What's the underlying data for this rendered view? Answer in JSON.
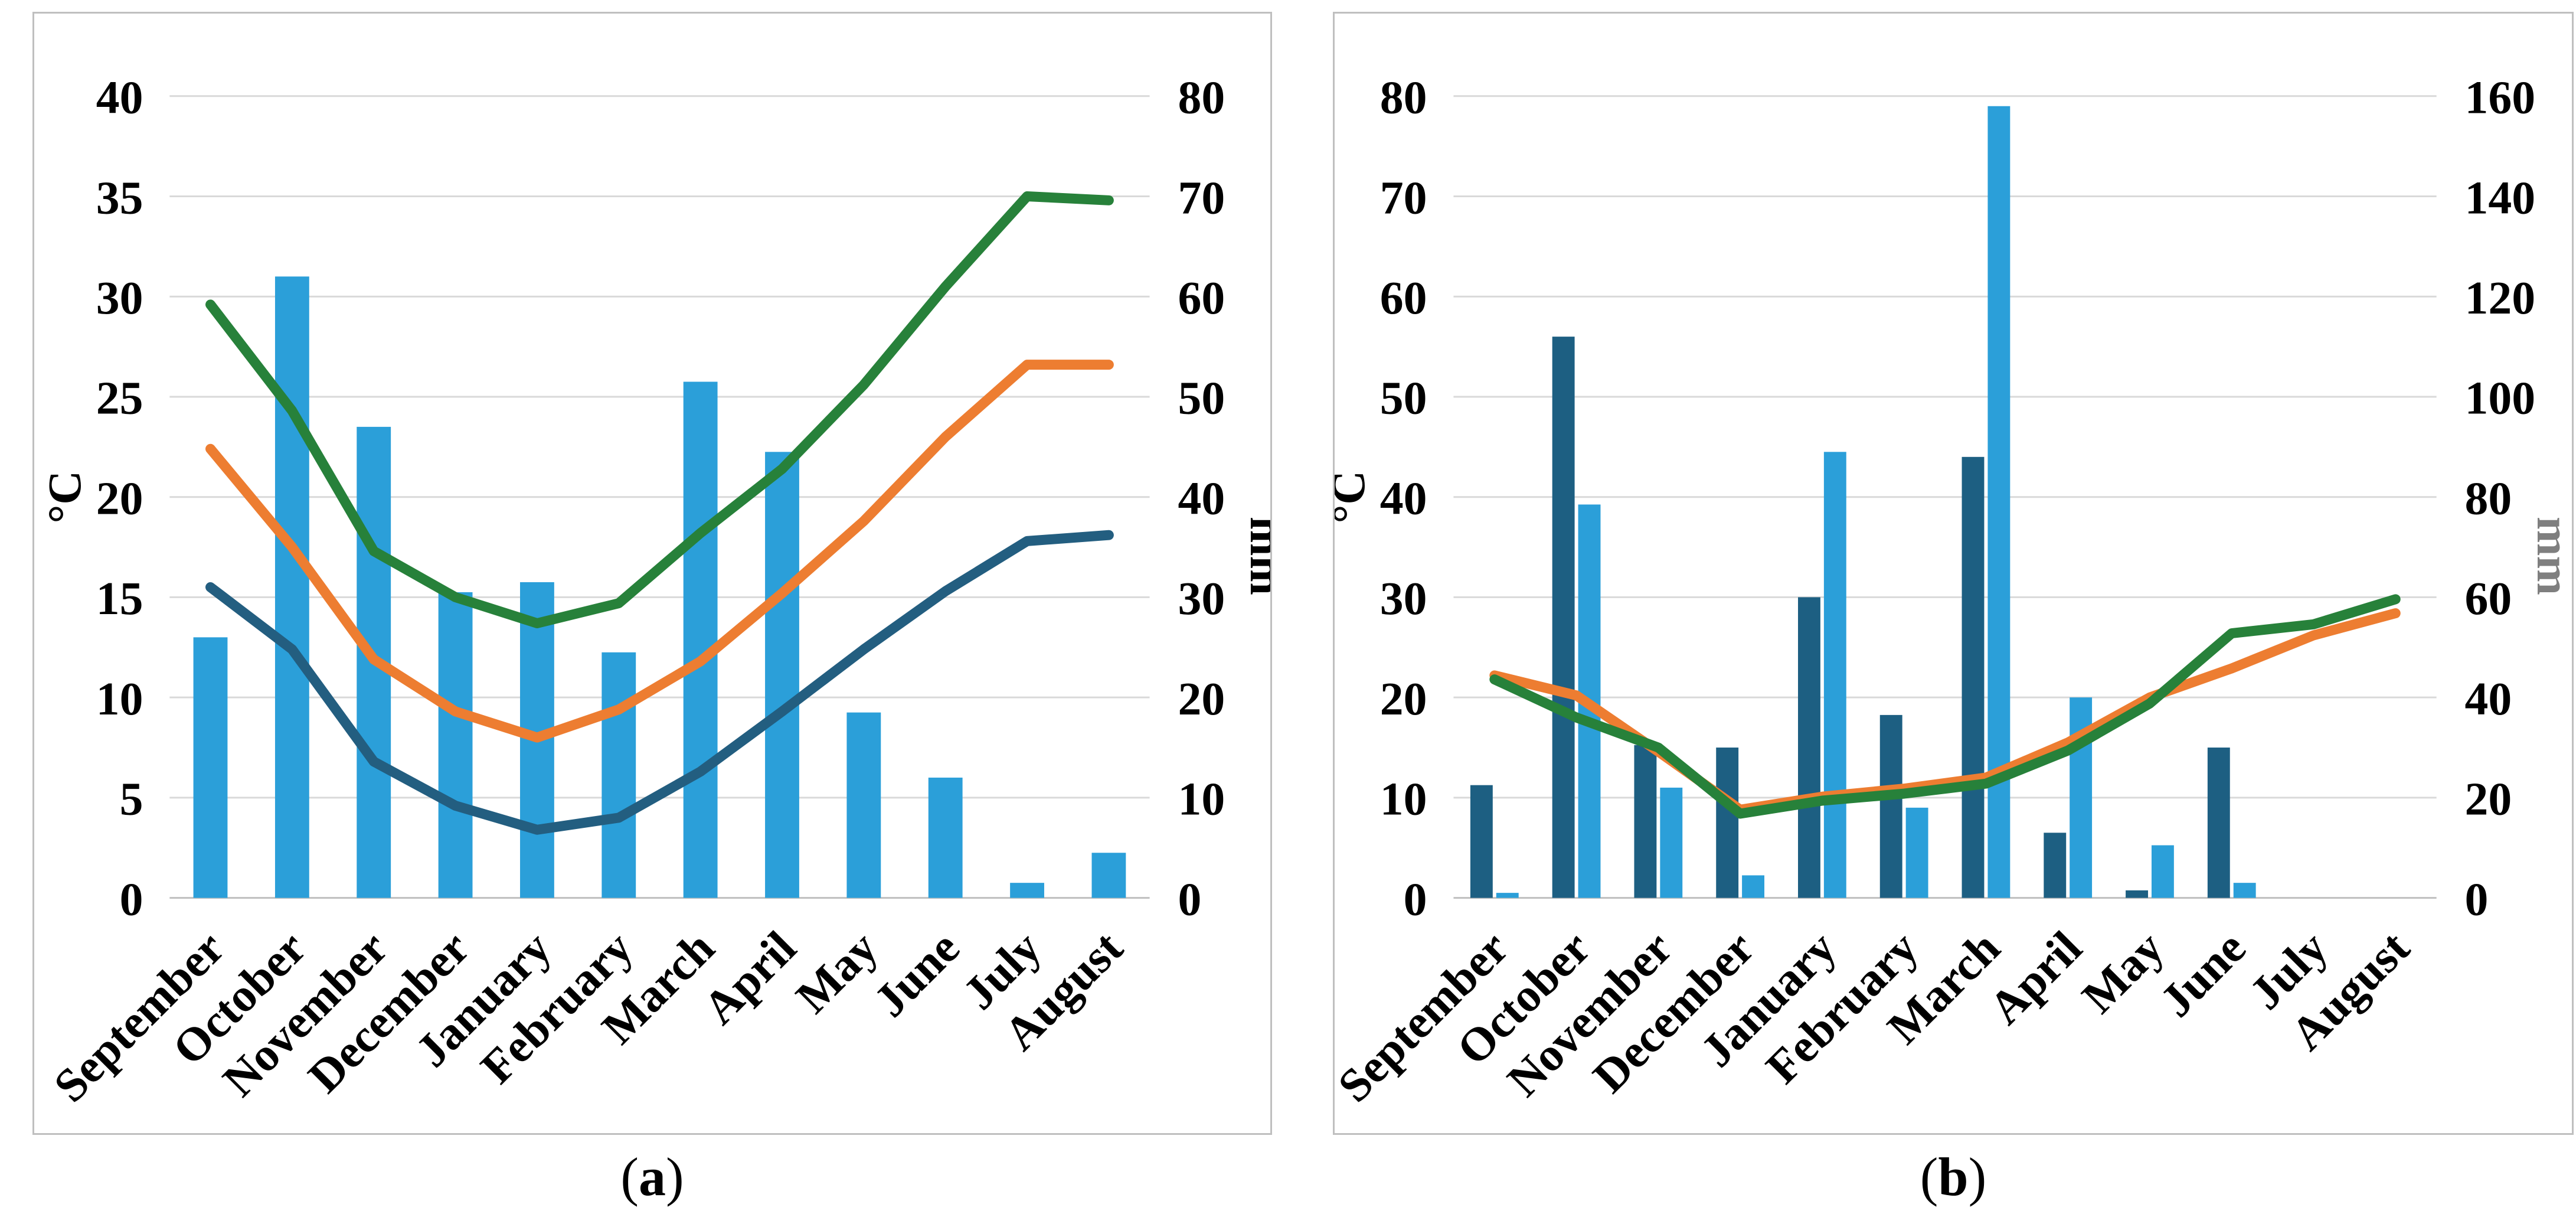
{
  "figure_name": "monthly-climate-diagrams",
  "colors": {
    "light_blue": "#2b9fd9",
    "dark_blue": "#1d5f82",
    "navy": "#235e80",
    "orange": "#ed7d31",
    "green": "#27813a",
    "gridline": "#d9d9d9",
    "zero_line": "#bfbfbf",
    "panel_border": "#bfbfbf",
    "text": "#000000",
    "mm_label_gray": "#7f7f7f"
  },
  "chart_data": [
    {
      "id": "a",
      "type": "bar+line combo",
      "caption": {
        "open": "(",
        "letter": "a",
        "close": ")"
      },
      "categories": [
        "September",
        "October",
        "November",
        "December",
        "January",
        "February",
        "March",
        "April",
        "May",
        "June",
        "July",
        "August"
      ],
      "left_axis": {
        "label": "°C",
        "min": 0,
        "max": 40,
        "step": 5,
        "label_color": "#000000"
      },
      "right_axis": {
        "label": "mm",
        "min": 0,
        "max": 80,
        "step": 10,
        "label_color": "#000000"
      },
      "grid": true,
      "legend": false,
      "bar_series": [
        {
          "name": "precipitation-bars",
          "axis": "right",
          "unit": "mm",
          "color_key": "light_blue",
          "values": [
            26,
            62,
            47,
            30.5,
            31.5,
            24.5,
            51.5,
            44.5,
            18.5,
            12,
            1.5,
            4.5
          ]
        }
      ],
      "line_series": [
        {
          "name": "max-temperature-line",
          "axis": "left",
          "unit": "°C",
          "color_key": "green",
          "values": [
            29.6,
            24.3,
            17.3,
            15,
            13.7,
            14.7,
            18.2,
            21.4,
            25.6,
            30.5,
            35,
            34.8
          ]
        },
        {
          "name": "mean-temperature-line",
          "axis": "left",
          "unit": "°C",
          "color_key": "orange",
          "values": [
            22.4,
            17.5,
            11.9,
            9.3,
            8,
            9.4,
            11.8,
            15.2,
            18.8,
            23,
            26.6,
            26.6
          ]
        },
        {
          "name": "min-temperature-line",
          "axis": "left",
          "unit": "°C",
          "color_key": "navy",
          "values": [
            15.5,
            12.4,
            6.8,
            4.6,
            3.4,
            4,
            6.3,
            9.3,
            12.4,
            15.3,
            17.8,
            18.1
          ]
        }
      ]
    },
    {
      "id": "b",
      "type": "bar+line combo",
      "caption": {
        "open": "(",
        "letter": "b",
        "close": ")"
      },
      "categories": [
        "September",
        "October",
        "November",
        "December",
        "January",
        "February",
        "March",
        "April",
        "May",
        "June",
        "July",
        "August"
      ],
      "left_axis": {
        "label": "°C",
        "min": 0,
        "max": 80,
        "step": 10,
        "label_color": "#000000"
      },
      "right_axis": {
        "label": "mm",
        "min": 0,
        "max": 160,
        "step": 20,
        "label_color": "#7f7f7f"
      },
      "grid": true,
      "legend": false,
      "bar_series": [
        {
          "name": "precipitation-bars-dark",
          "axis": "right",
          "unit": "mm",
          "color_key": "dark_blue",
          "values": [
            22.5,
            112,
            30.5,
            30,
            60,
            36.5,
            88,
            13,
            1.5,
            30,
            0,
            0
          ]
        },
        {
          "name": "precipitation-bars-light",
          "axis": "right",
          "unit": "mm",
          "color_key": "light_blue",
          "values": [
            1,
            78.5,
            22,
            4.5,
            89,
            18,
            158,
            40,
            10.5,
            3,
            0,
            0
          ]
        }
      ],
      "line_series": [
        {
          "name": "temperature-line-orange",
          "axis": "left",
          "unit": "°C",
          "color_key": "orange",
          "values": [
            22.2,
            20.2,
            14.6,
            8.8,
            10.1,
            10.9,
            12,
            15.5,
            20,
            22.9,
            26.2,
            28.4
          ]
        },
        {
          "name": "temperature-line-green",
          "axis": "left",
          "unit": "°C",
          "color_key": "green",
          "values": [
            21.8,
            18,
            15,
            8.4,
            9.7,
            10.4,
            11.4,
            14.7,
            19.4,
            26.4,
            27.3,
            29.8
          ]
        }
      ]
    }
  ]
}
